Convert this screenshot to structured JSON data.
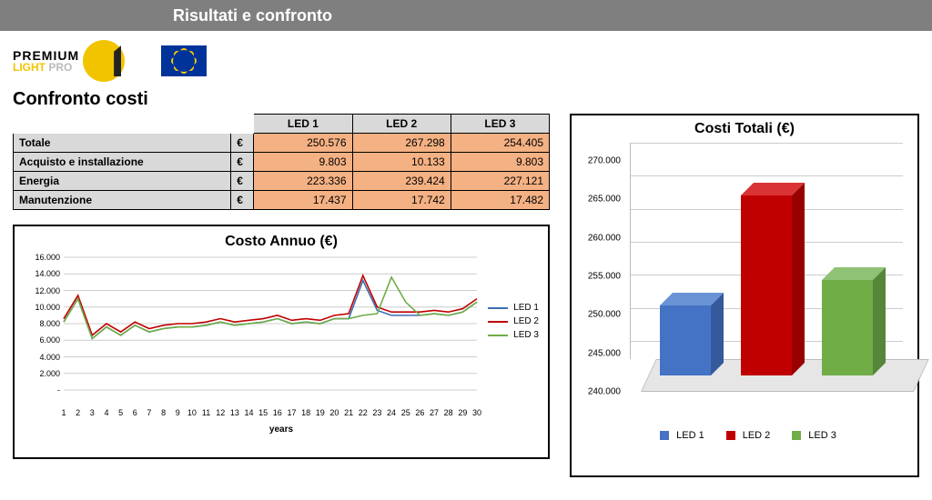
{
  "header": {
    "title": "Risultati e confronto"
  },
  "logo": {
    "top": "PREMIUM",
    "bot_light": "LIGHT",
    "bot_pro": " PRO"
  },
  "section_title": "Confronto costi",
  "table": {
    "columns": [
      "LED 1",
      "LED 2",
      "LED 3"
    ],
    "rows": [
      {
        "label": "Totale",
        "values": [
          "250.576",
          "267.298",
          "254.405"
        ]
      },
      {
        "label": "Acquisto e installazione",
        "values": [
          "9.803",
          "10.133",
          "9.803"
        ]
      },
      {
        "label": "Energia",
        "values": [
          "223.336",
          "239.424",
          "227.121"
        ]
      },
      {
        "label": "Manutenzione",
        "values": [
          "17.437",
          "17.742",
          "17.482"
        ]
      }
    ],
    "currency": "€",
    "header_bg": "#d9d9d9",
    "value_bg": "#f4b183"
  },
  "line_chart": {
    "type": "line",
    "title": "Costo Annuo (€)",
    "xlabel": "years",
    "x": [
      1,
      2,
      3,
      4,
      5,
      6,
      7,
      8,
      9,
      10,
      11,
      12,
      13,
      14,
      15,
      16,
      17,
      18,
      19,
      20,
      21,
      22,
      23,
      24,
      25,
      26,
      27,
      28,
      29,
      30
    ],
    "ylim": [
      0,
      16000
    ],
    "ytick_step": 2000,
    "y_tick_labels": [
      "-",
      "2.000",
      "4.000",
      "6.000",
      "8.000",
      "10.000",
      "12.000",
      "14.000",
      "16.000"
    ],
    "grid_color": "#cccccc",
    "series": [
      {
        "name": "LED 1",
        "color": "#3b6fb6",
        "values": [
          8200,
          11000,
          6200,
          7600,
          6600,
          7800,
          7000,
          7400,
          7600,
          7600,
          7800,
          8200,
          7800,
          8000,
          8200,
          8600,
          8000,
          8200,
          8000,
          8600,
          8600,
          13200,
          9600,
          9000,
          9000,
          9000,
          9200,
          9000,
          9400,
          10600
        ]
      },
      {
        "name": "LED 2",
        "color": "#c00000",
        "values": [
          8600,
          11400,
          6600,
          8000,
          7000,
          8200,
          7400,
          7800,
          8000,
          8000,
          8200,
          8600,
          8200,
          8400,
          8600,
          9000,
          8400,
          8600,
          8400,
          9000,
          9200,
          13800,
          10000,
          9400,
          9400,
          9400,
          9600,
          9400,
          9800,
          11000
        ]
      },
      {
        "name": "LED 3",
        "color": "#70ad47",
        "values": [
          8200,
          11000,
          6200,
          7600,
          6600,
          7800,
          7000,
          7400,
          7600,
          7600,
          7800,
          8200,
          7800,
          8000,
          8200,
          8600,
          8000,
          8200,
          8000,
          8600,
          8600,
          9000,
          9200,
          13600,
          10600,
          9000,
          9200,
          9000,
          9400,
          10600
        ]
      }
    ],
    "legend_labels": [
      "LED 1",
      "LED 2",
      "LED 3"
    ]
  },
  "bar_chart": {
    "type": "bar3d",
    "title": "Costi Totali (€)",
    "ylim": [
      240000,
      270000
    ],
    "ytick_step": 5000,
    "y_tick_labels": [
      "240.000",
      "245.000",
      "250.000",
      "255.000",
      "260.000",
      "265.000",
      "270.000"
    ],
    "categories": [
      "LED 1",
      "LED 2",
      "LED 3"
    ],
    "values": [
      250576,
      267298,
      254405
    ],
    "colors": [
      "#4472c4",
      "#c00000",
      "#70ad47"
    ],
    "colors_top": [
      "#6a93d6",
      "#d93333",
      "#8fc274"
    ],
    "colors_side": [
      "#355a9c",
      "#990000",
      "#568639"
    ],
    "grid_color": "#cccccc",
    "floor_color": "#e6e6e6"
  }
}
